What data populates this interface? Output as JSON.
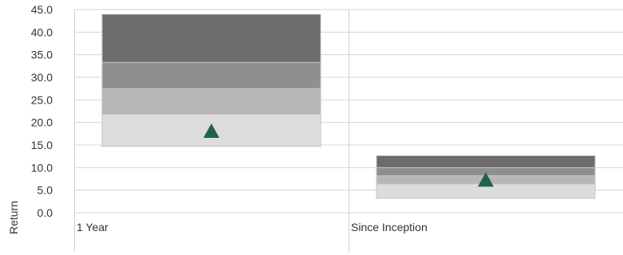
{
  "chart_data": {
    "type": "floating-bar",
    "ylabel": "Return",
    "ylim": [
      0,
      45
    ],
    "yticks": [
      "0.0",
      "5.0",
      "10.0",
      "15.0",
      "20.0",
      "25.0",
      "30.0",
      "35.0",
      "40.0",
      "45.0"
    ],
    "ytick_values": [
      0,
      5,
      10,
      15,
      20,
      25,
      30,
      35,
      40,
      45
    ],
    "grid": true,
    "categories": [
      "1 Year",
      "Since Inception"
    ],
    "bands": [
      {
        "category": "1 Year",
        "quartiles": [
          14.7,
          21.8,
          27.5,
          33.3,
          43.8
        ],
        "marker": 18.0
      },
      {
        "category": "Since Inception",
        "quartiles": [
          3.2,
          6.4,
          8.2,
          10.0,
          12.5
        ],
        "marker": 7.2
      }
    ],
    "band_colors": [
      "#dcdcda",
      "#b6b6b6",
      "#8f8f8f",
      "#6d6b6c"
    ],
    "marker_color": "#1e634c",
    "marker_shape": "triangle-up"
  }
}
